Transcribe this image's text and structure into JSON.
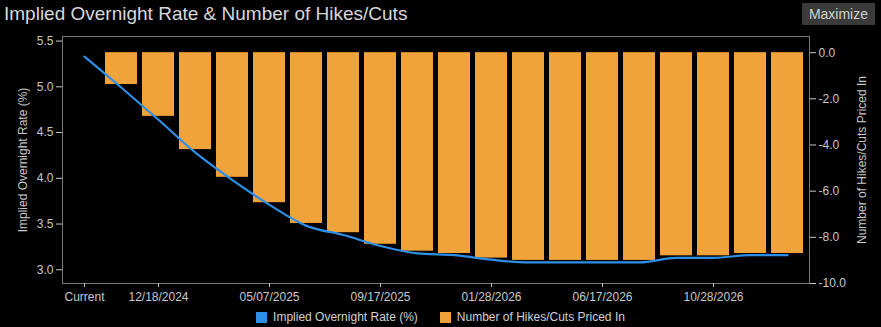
{
  "chart_data": {
    "type": "bar",
    "title": "Implied Overnight Rate & Number of Hikes/Cuts",
    "annotations": [
      "Maximize"
    ],
    "y_label": "Implied Overnight Rate (%)",
    "y2_label": "Number of Hikes/Cuts Priced In",
    "categories": [
      "Current",
      null,
      "12/18/2024",
      null,
      null,
      "05/07/2025",
      null,
      null,
      "09/17/2025",
      null,
      null,
      "01/28/2026",
      null,
      null,
      "06/17/2026",
      null,
      null,
      "10/28/2026",
      null,
      null
    ],
    "series": [
      {
        "name": "Implied Overnight Rate (%)",
        "type": "line",
        "color": "#2f8fe6",
        "values": [
          5.33,
          4.99,
          4.64,
          4.28,
          3.98,
          3.71,
          3.48,
          3.38,
          3.26,
          3.18,
          3.16,
          3.11,
          3.08,
          3.08,
          3.08,
          3.08,
          3.13,
          3.13,
          3.16,
          3.16
        ]
      },
      {
        "name": "Number of Hikes/Cuts Priced In",
        "type": "bar",
        "axis": "y2",
        "color": "#f0a33a",
        "values": [
          0,
          -1.38,
          -2.76,
          -4.2,
          -5.4,
          -6.5,
          -7.4,
          -7.8,
          -8.3,
          -8.6,
          -8.7,
          -8.9,
          -9.0,
          -9.0,
          -9.0,
          -9.0,
          -8.8,
          -8.8,
          -8.7,
          -8.7
        ]
      }
    ],
    "ylim": [
      2.85,
      5.55
    ],
    "yticks": [
      {
        "value": 3,
        "label": "3.0"
      },
      3.5,
      {
        "value": 4,
        "label": "4.0"
      },
      4.5,
      {
        "value": 5,
        "label": "5.0"
      },
      5.5
    ],
    "y2lim": [
      -10,
      0.7
    ],
    "y2ticks": [
      {
        "value": 0,
        "label": "0.0"
      },
      {
        "value": -2,
        "label": "-2.0"
      },
      {
        "value": -4,
        "label": "-4.0"
      },
      {
        "value": -6,
        "label": "-6.0"
      },
      {
        "value": -8,
        "label": "-8.0"
      },
      {
        "value": -10,
        "label": "-10.0"
      }
    ],
    "grid": false,
    "legend": "bottom"
  }
}
